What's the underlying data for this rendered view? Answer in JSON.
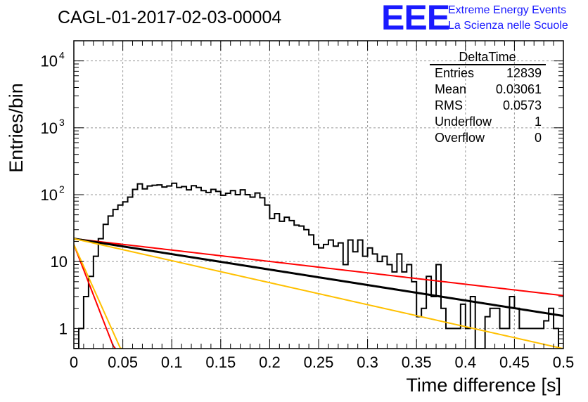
{
  "title": "CAGL-01-2017-02-03-00004",
  "logo": {
    "letters": "EEE",
    "line1": "Extreme Energy Events",
    "line2": "La Scienza nelle Scuole"
  },
  "stats": {
    "name": "DeltaTime",
    "rows": [
      {
        "label": "Entries",
        "value": "12839"
      },
      {
        "label": "Mean",
        "value": "0.03061"
      },
      {
        "label": "RMS",
        "value": "0.0573"
      },
      {
        "label": "Underflow",
        "value": "1"
      },
      {
        "label": "Overflow",
        "value": "0"
      }
    ]
  },
  "chart_data": {
    "type": "line",
    "xlabel": "Time difference [s]",
    "ylabel": "Entries/bin",
    "xlim": [
      0,
      0.5
    ],
    "ylim": [
      0.5,
      20000
    ],
    "yscale": "log",
    "grid": true,
    "legend": "top-right",
    "x_ticks": [
      "0",
      "0.05",
      "0.1",
      "0.15",
      "0.2",
      "0.25",
      "0.3",
      "0.35",
      "0.4",
      "0.45",
      "0.5"
    ],
    "y_ticks": [
      {
        "value": 1,
        "base": "1",
        "exp": ""
      },
      {
        "value": 10,
        "base": "10",
        "exp": ""
      },
      {
        "value": 100,
        "base": "10",
        "exp": "2"
      },
      {
        "value": 1000,
        "base": "10",
        "exp": "3"
      },
      {
        "value": 10000,
        "base": "10",
        "exp": "4"
      }
    ],
    "histogram": {
      "bin_width": 0.005,
      "color": "#000000",
      "values": [
        0.01,
        1,
        3,
        6,
        12,
        22,
        36,
        48,
        60,
        70,
        78,
        92,
        120,
        145,
        122,
        135,
        138,
        140,
        130,
        135,
        148,
        128,
        132,
        118,
        136,
        128,
        115,
        108,
        120,
        112,
        98,
        105,
        115,
        100,
        118,
        100,
        92,
        106,
        90,
        70,
        44,
        52,
        40,
        46,
        41,
        35,
        34,
        30,
        25,
        18,
        16,
        18,
        21,
        17,
        19,
        9,
        21,
        14,
        21,
        12,
        16,
        13,
        10,
        12,
        9,
        7,
        13,
        7,
        9,
        5,
        1.5,
        2,
        6,
        3,
        9,
        2,
        1,
        1,
        1,
        2.3,
        1,
        3,
        0.5,
        0.5,
        1.5,
        2,
        2,
        1,
        1,
        3,
        2,
        1,
        1,
        1,
        1,
        1,
        1.3,
        2,
        1,
        0.5
      ]
    },
    "curves": [
      {
        "color": "#ff0000",
        "width": 2,
        "y0": 22,
        "tau": 0.255
      },
      {
        "color": "#000000",
        "width": 3,
        "y0": 22,
        "tau": 0.188
      },
      {
        "color": "#ffc000",
        "width": 2,
        "y0": 22,
        "tau": 0.132
      },
      {
        "color": "#ff0000",
        "width": 2,
        "y0": 18,
        "tau": 0.0115
      },
      {
        "color": "#ffc000",
        "width": 2,
        "y0": 18,
        "tau": 0.0133
      }
    ]
  }
}
